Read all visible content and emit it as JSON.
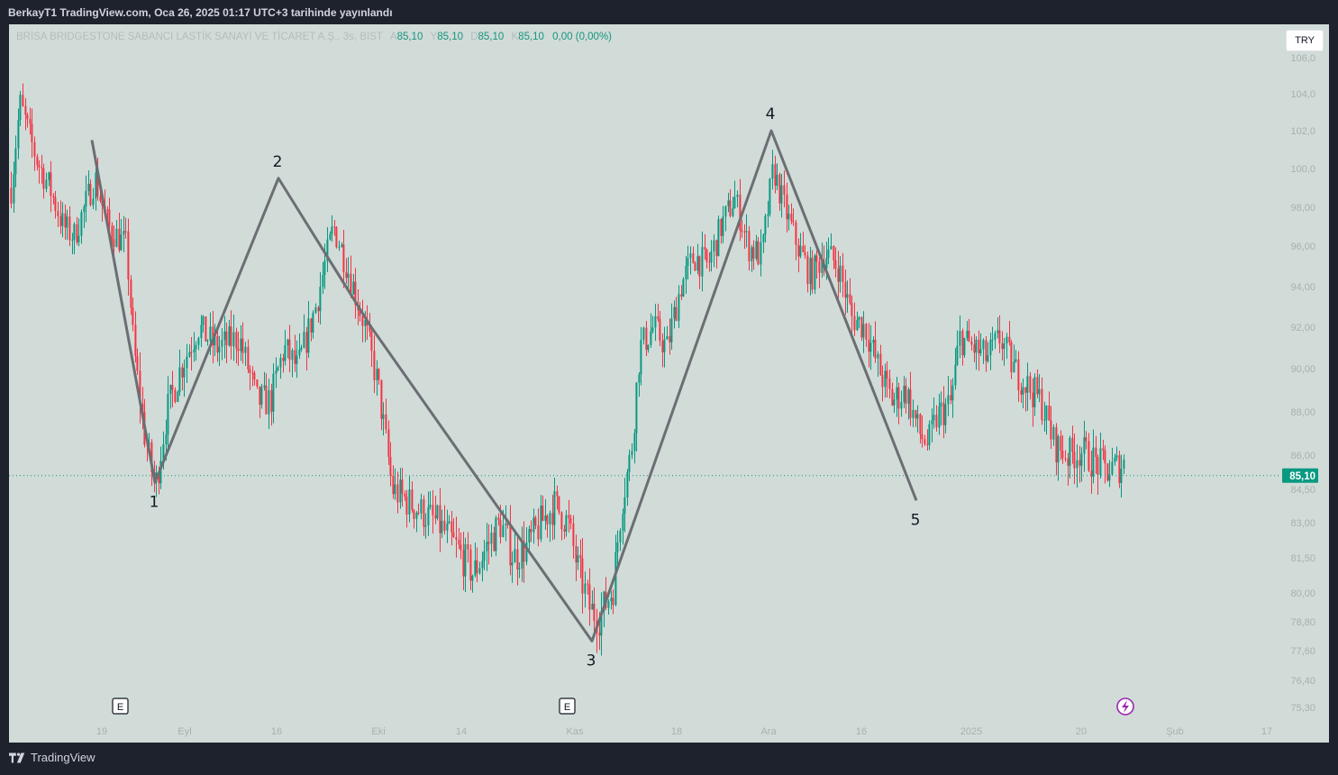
{
  "header": {
    "caption": "BerkayT1 TradingView.com, Oca 26, 2025 01:17 UTC+3 tarihinde yayınlandı"
  },
  "symbol": {
    "name": "BRİSA BRIDGESTONE SABANCI LASTİK SANAYİ VE TİCARET A.Ş., 3s, BIST",
    "open_label": "A",
    "open": "85,10",
    "high_label": "Y",
    "high": "85,10",
    "low_label": "D",
    "low": "85,10",
    "close_label": "K",
    "close": "85,10",
    "change": "0,00 (0,00%)"
  },
  "currency": "TRY",
  "price_tag": "85,10",
  "colors": {
    "up": "#089981",
    "down": "#f23645",
    "pattern_line": "#6b6e72",
    "background": "#d1dbd8",
    "price_tag_bg": "#089981"
  },
  "y_axis_ticks": [
    "106,0",
    "104,0",
    "102,0",
    "100,0",
    "98,00",
    "96,00",
    "94,00",
    "92,00",
    "90,00",
    "88,00",
    "86,00",
    "84,50",
    "83,00",
    "81,50",
    "80,00",
    "78,80",
    "77,60",
    "76,40",
    "75,30"
  ],
  "x_axis_ticks": [
    "19",
    "Eyl",
    "16",
    "Eki",
    "14",
    "Kas",
    "18",
    "Ara",
    "16",
    "2025",
    "20",
    "Şub",
    "17"
  ],
  "earnings_markers": [
    {
      "label": "E"
    },
    {
      "label": "E"
    }
  ],
  "alert_icon": "lightning-icon",
  "chart_data": {
    "type": "line",
    "description_free": true,
    "series": [
      {
        "name": "",
        "x": [
          "~Ağu 15",
          "1",
          "2",
          "Eki 23",
          "3",
          "4",
          "5"
        ],
        "y": [
          101.5,
          84.8,
          99.5,
          92.0,
          78.0,
          102.0,
          84.0
        ]
      }
    ],
    "point_labels": [
      "",
      "1",
      "2",
      "",
      "3",
      "4",
      "5"
    ],
    "last_price": 85.1
  },
  "footer": {
    "brand": "TradingView"
  }
}
